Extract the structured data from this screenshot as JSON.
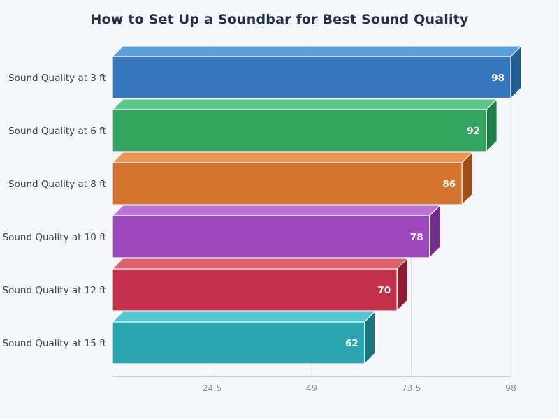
{
  "title": "How to Set Up a Soundbar for Best Sound Quality",
  "colors": {
    "background": "#f5f7fa",
    "title_text": "#20304f",
    "category_label": "#3a4354",
    "tick_label": "#8b93a2",
    "value_label": "#ffffff",
    "gridline": "#dde2e9",
    "axis_line": "#c9cfd9"
  },
  "chart_data": {
    "type": "bar",
    "orientation": "horizontal",
    "style": "3d",
    "title": "How to Set Up a Soundbar for Best Sound Quality",
    "categories": [
      "Sound Quality at 3 ft",
      "Sound Quality at 6 ft",
      "Sound Quality at 8 ft",
      "Sound Quality at 10 ft",
      "Sound Quality at 12 ft",
      "Sound Quality at 15 ft"
    ],
    "values": [
      98,
      92,
      86,
      78,
      70,
      62
    ],
    "value_labels": [
      "98",
      "92",
      "86",
      "78",
      "70",
      "62"
    ],
    "xlabel": "",
    "ylabel": "",
    "xlim": [
      0,
      98
    ],
    "xticks": [
      24.5,
      49,
      73.5,
      98
    ],
    "xtick_labels": [
      "24.5",
      "49",
      "73.5",
      "98"
    ],
    "grid": true,
    "legend": false,
    "bar_colors": [
      {
        "name": "blue",
        "front": "#3577bd",
        "top": "#5d9fdb",
        "side": "#255d92"
      },
      {
        "name": "green",
        "front": "#34a561",
        "top": "#58c988",
        "side": "#1e7f45"
      },
      {
        "name": "orange",
        "front": "#d4722f",
        "top": "#ea9654",
        "side": "#9c4e1c"
      },
      {
        "name": "purple",
        "front": "#9c48ba",
        "top": "#bb74d6",
        "side": "#702f8b"
      },
      {
        "name": "crimson",
        "front": "#c23049",
        "top": "#dc5f6e",
        "side": "#8d1d32"
      },
      {
        "name": "teal",
        "front": "#2ba4af",
        "top": "#53c6d0",
        "side": "#1a737d"
      }
    ]
  }
}
